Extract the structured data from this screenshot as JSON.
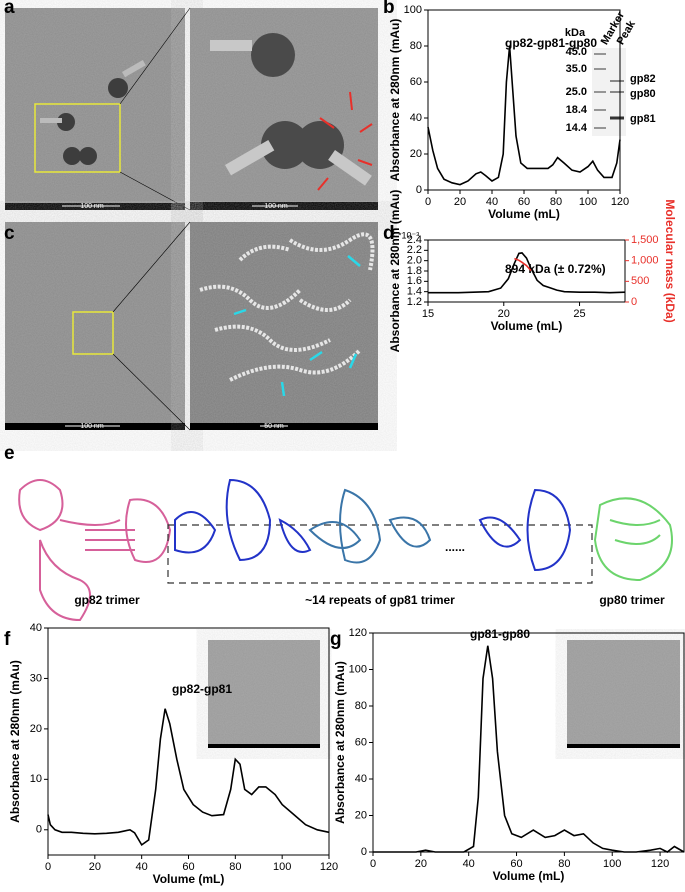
{
  "panels": [
    "a",
    "b",
    "c",
    "d",
    "e",
    "f",
    "g"
  ],
  "scale_bars": [
    "100 nm",
    "100 nm",
    "100 nm",
    "50 nm"
  ],
  "gel": {
    "unit": "kDa",
    "markers": [
      "45.0",
      "35.0",
      "25.0",
      "18.4",
      "14.4"
    ],
    "lanes": [
      "Marker",
      "Peak"
    ],
    "bands": [
      "gp82",
      "gp80",
      "gp81"
    ]
  },
  "structure": {
    "labels": [
      "gp82 trimer",
      "~14 repeats of gp81 trimer",
      "gp80 trimer"
    ],
    "ellipsis": "......"
  },
  "chart_data": [
    {
      "type": "line",
      "annotation": "gp82-gp81-gp80",
      "xlabel": "Volume (mL)",
      "ylabel": "Absorbance at 280nm (mAu)",
      "x": [
        0,
        3,
        6,
        10,
        15,
        20,
        25,
        30,
        33,
        36,
        40,
        44,
        47,
        49,
        51,
        53,
        55,
        58,
        62,
        68,
        75,
        78,
        81,
        85,
        90,
        95,
        100,
        103,
        106,
        110,
        115,
        118,
        120
      ],
      "series": [
        {
          "name": "Absorbance",
          "color": "#000000",
          "values": [
            35,
            22,
            12,
            6,
            4,
            3,
            5,
            9,
            10,
            8,
            5,
            7,
            20,
            60,
            80,
            55,
            30,
            15,
            12,
            12,
            12,
            14,
            18,
            15,
            11,
            10,
            13,
            16,
            11,
            7,
            7,
            15,
            28
          ]
        }
      ],
      "xlim": [
        0,
        120
      ],
      "xticks": [
        0,
        20,
        40,
        60,
        80,
        100,
        120
      ],
      "ylim": [
        0,
        100
      ],
      "yticks": [
        0,
        20,
        40,
        60,
        80,
        100
      ]
    },
    {
      "type": "line",
      "annotation": "894 kDa (± 0.72%)",
      "multiplier": "*10⁻³",
      "xlabel": "Volume (mL)",
      "ylabel": "Absorbance at 280nm (mAu)",
      "y2label": "Molecular mass (kDa)",
      "x": [
        15,
        17,
        19,
        19.8,
        20.3,
        20.7,
        21,
        21.2,
        21.5,
        21.8,
        22.2,
        22.6,
        23,
        23.5,
        24,
        25,
        26,
        27,
        28
      ],
      "series": [
        {
          "name": "Absorbance",
          "color": "#000000",
          "values": [
            1.38,
            1.38,
            1.4,
            1.47,
            1.65,
            1.95,
            2.14,
            2.15,
            2.05,
            1.85,
            1.62,
            1.52,
            1.48,
            1.43,
            1.4,
            1.39,
            1.39,
            1.38,
            1.39
          ]
        },
        {
          "name": "Molecular mass",
          "color": "#e8302a",
          "axis": "y2",
          "values": [
            null,
            null,
            null,
            null,
            null,
            1050,
            1010,
            960,
            880,
            760,
            null,
            null,
            null,
            null,
            null,
            null,
            null,
            null,
            null
          ]
        }
      ],
      "xlim": [
        15,
        28
      ],
      "xticks": [
        15,
        20,
        25
      ],
      "ylim": [
        1.2,
        2.4
      ],
      "yticks": [
        1.2,
        1.4,
        1.6,
        1.8,
        {
          "value": 2,
          "label": "2.0"
        },
        2.2,
        2.4
      ],
      "y2lim": [
        0,
        1500
      ],
      "y2ticks": [
        0,
        500,
        {
          "value": 1000,
          "label": "1,000"
        },
        {
          "value": 1500,
          "label": "1,500"
        }
      ]
    },
    {
      "type": "line",
      "annotation": "gp82-gp81",
      "xlabel": "Volume (mL)",
      "ylabel": "Absorbance at 280nm (mAu)",
      "x": [
        0,
        1,
        3,
        6,
        10,
        15,
        20,
        25,
        30,
        33,
        35,
        37,
        40,
        43,
        46,
        48,
        50,
        52,
        55,
        58,
        62,
        66,
        70,
        75,
        78,
        80,
        82,
        84,
        87,
        90,
        93,
        97,
        100,
        105,
        110,
        115,
        120
      ],
      "series": [
        {
          "name": "Absorbance",
          "color": "#000000",
          "values": [
            3,
            1,
            0,
            -0.5,
            -0.5,
            -0.7,
            -0.8,
            -0.7,
            -0.5,
            -0.2,
            0,
            -0.6,
            -3,
            -2,
            8,
            18,
            24,
            21,
            14,
            8,
            5,
            3.5,
            2.8,
            3,
            8,
            14,
            13,
            8,
            7,
            8.5,
            8.5,
            7,
            5,
            3,
            1,
            0,
            -0.5
          ]
        }
      ],
      "xlim": [
        0,
        120
      ],
      "xticks": [
        0,
        20,
        40,
        60,
        80,
        100,
        120
      ],
      "ylim": [
        -5,
        40
      ],
      "yticks": [
        0,
        10,
        20,
        30,
        40
      ]
    },
    {
      "type": "line",
      "annotation": "gp81-gp80",
      "xlabel": "Volume (mL)",
      "ylabel": "Absorbance at 280nm (mAu)",
      "x": [
        0,
        18,
        22,
        26,
        38,
        42,
        44,
        46,
        48,
        50,
        52,
        55,
        58,
        62,
        67,
        72,
        76,
        80,
        84,
        88,
        92,
        96,
        100,
        105,
        110,
        116,
        120,
        123,
        126,
        130
      ],
      "series": [
        {
          "name": "Absorbance",
          "color": "#000000",
          "values": [
            0,
            0,
            1,
            0,
            0,
            3,
            30,
            95,
            113,
            95,
            55,
            20,
            10,
            8,
            12,
            8,
            9,
            12,
            9,
            10,
            5,
            2,
            1,
            0,
            0,
            1,
            2,
            0,
            3,
            0
          ]
        }
      ],
      "xlim": [
        0,
        130
      ],
      "xticks": [
        0,
        20,
        40,
        60,
        80,
        100,
        120
      ],
      "ylim": [
        0,
        120
      ],
      "yticks": [
        0,
        20,
        40,
        60,
        80,
        100,
        120
      ]
    }
  ]
}
